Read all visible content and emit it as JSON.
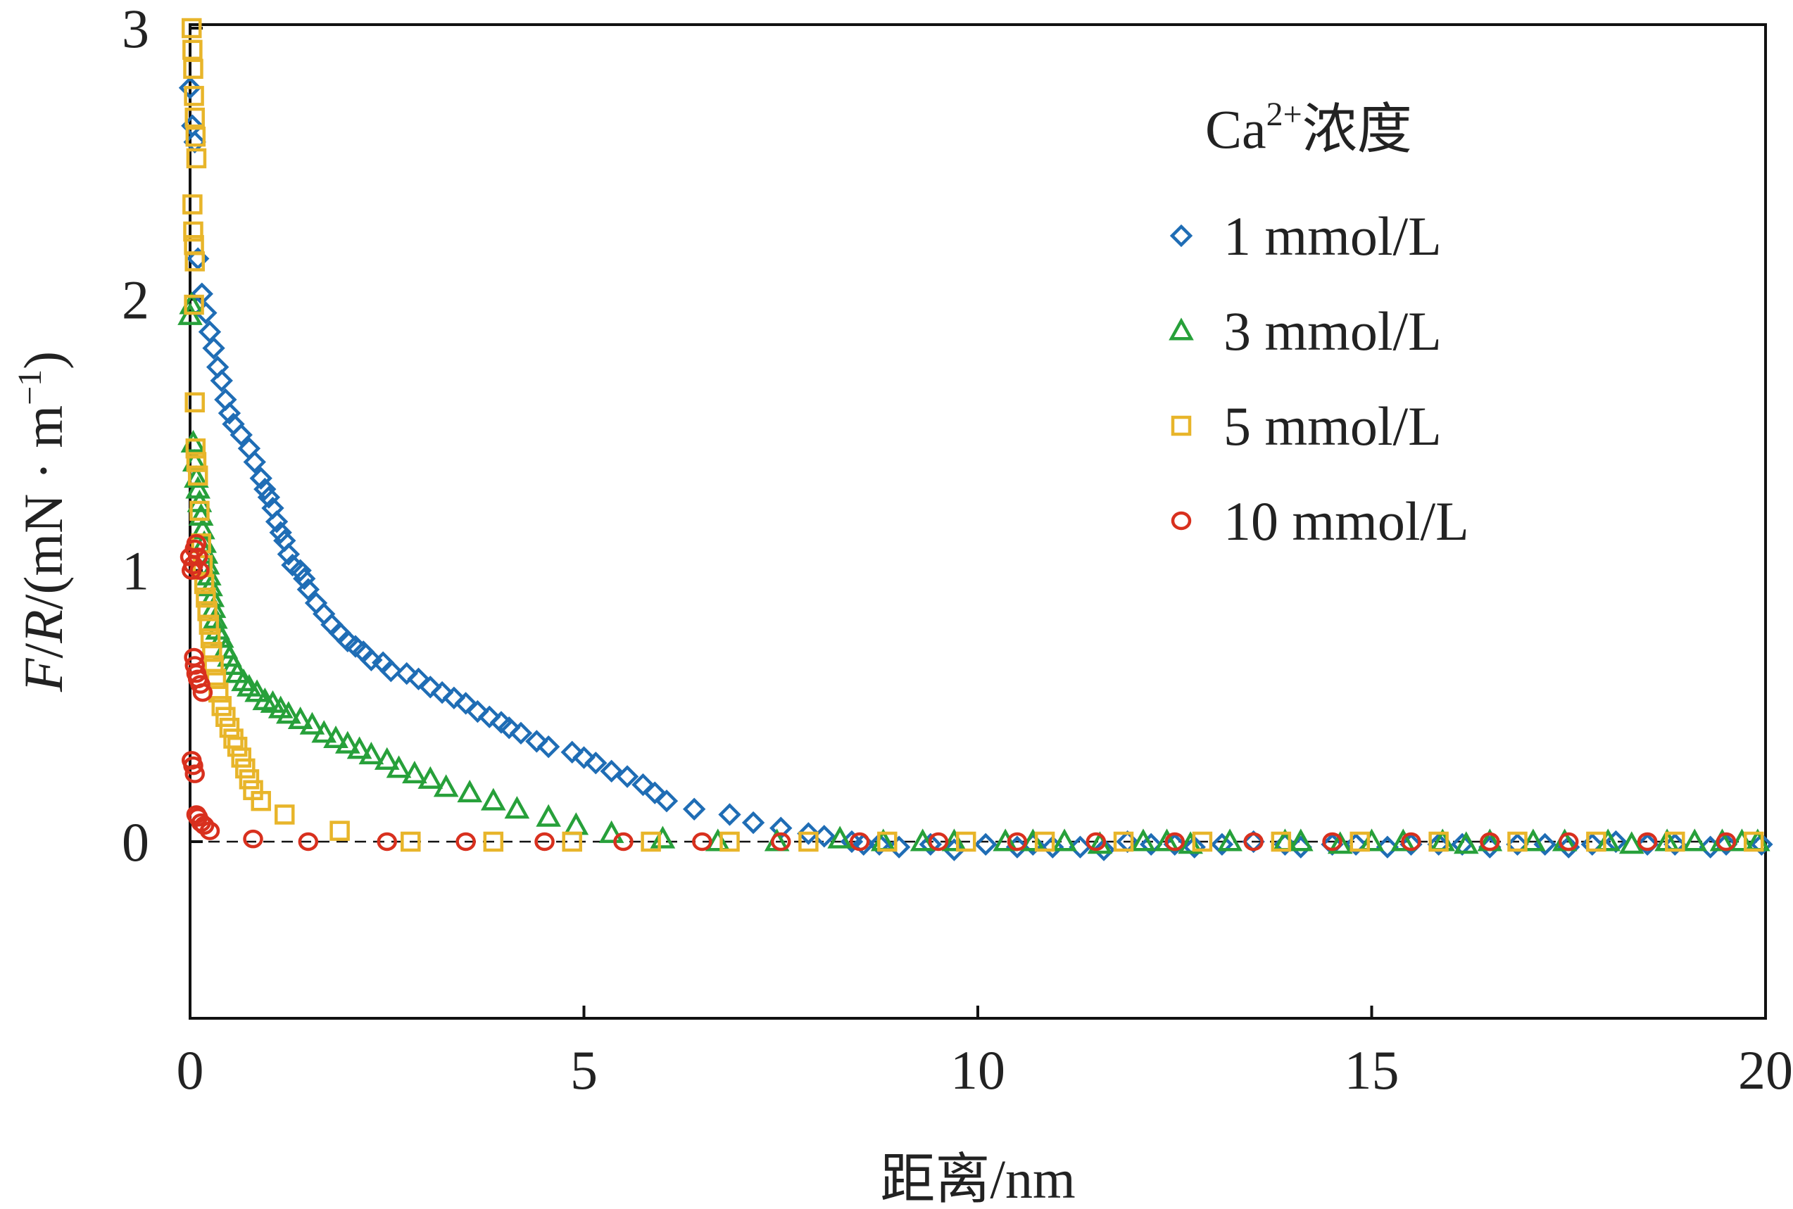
{
  "chart_data": {
    "type": "scatter",
    "title": "",
    "xlabel": "距离/nm",
    "ylabel": {
      "F": "F",
      "sep1": "/",
      "R": "R",
      "unit_pre": "/(mN · m",
      "unit_sup": "−1",
      "unit_post": ")"
    },
    "xlim": [
      0,
      20
    ],
    "ylim": [
      -0.65,
      3.0
    ],
    "xticks": [
      0,
      5,
      10,
      15,
      20
    ],
    "xtick_labels": [
      "0",
      "5",
      "10",
      "15",
      "20"
    ],
    "yticks": [
      0,
      1,
      2,
      3
    ],
    "ytick_labels": [
      "0",
      "1",
      "2",
      "3"
    ],
    "grid": false,
    "zero_line": true,
    "legend": {
      "position": "top-right",
      "title_main": "Ca",
      "title_sup": "2+",
      "title_rest": "浓度"
    },
    "series": [
      {
        "name": "1 mmol/L",
        "marker": "diamond",
        "color": "#1f6db5",
        "x": [
          0.0,
          0.03,
          0.06,
          0.1,
          0.15,
          0.2,
          0.25,
          0.3,
          0.35,
          0.4,
          0.45,
          0.5,
          0.55,
          0.65,
          0.75,
          0.82,
          0.9,
          0.95,
          1.0,
          1.05,
          1.1,
          1.15,
          1.2,
          1.25,
          1.3,
          1.4,
          1.45,
          1.5,
          1.6,
          1.7,
          1.8,
          1.9,
          2.0,
          2.1,
          2.2,
          2.3,
          2.45,
          2.55,
          2.75,
          2.9,
          3.05,
          3.2,
          3.35,
          3.5,
          3.65,
          3.8,
          3.95,
          4.05,
          4.2,
          4.4,
          4.55,
          4.85,
          5.0,
          5.15,
          5.35,
          5.55,
          5.75,
          5.9,
          6.05,
          6.4,
          6.85,
          7.15,
          7.5,
          7.85,
          8.05,
          8.4,
          8.55,
          8.75,
          9.0,
          9.4,
          9.7,
          10.1,
          10.5,
          10.7,
          10.95,
          11.3,
          11.6,
          11.9,
          12.2,
          12.5,
          12.75,
          13.1,
          13.5,
          13.9,
          14.1,
          14.5,
          14.8,
          15.2,
          15.5,
          15.85,
          16.15,
          16.5,
          16.85,
          17.2,
          17.5,
          17.8,
          18.1,
          18.5,
          18.85,
          19.3,
          19.5,
          19.95
        ],
        "y": [
          2.78,
          2.64,
          2.58,
          2.15,
          2.02,
          1.95,
          1.88,
          1.82,
          1.75,
          1.7,
          1.63,
          1.58,
          1.54,
          1.5,
          1.45,
          1.4,
          1.34,
          1.3,
          1.27,
          1.23,
          1.18,
          1.14,
          1.11,
          1.06,
          1.02,
          1.0,
          0.97,
          0.93,
          0.88,
          0.84,
          0.8,
          0.77,
          0.74,
          0.72,
          0.7,
          0.67,
          0.66,
          0.63,
          0.62,
          0.6,
          0.57,
          0.55,
          0.53,
          0.51,
          0.48,
          0.46,
          0.44,
          0.42,
          0.4,
          0.37,
          0.35,
          0.33,
          0.31,
          0.29,
          0.26,
          0.24,
          0.21,
          0.18,
          0.15,
          0.12,
          0.1,
          0.07,
          0.05,
          0.03,
          0.02,
          0.0,
          -0.01,
          -0.01,
          -0.02,
          -0.01,
          -0.03,
          -0.01,
          -0.02,
          -0.01,
          -0.02,
          -0.02,
          -0.03,
          0.0,
          -0.01,
          -0.01,
          -0.02,
          -0.01,
          0.0,
          -0.01,
          -0.02,
          -0.01,
          -0.01,
          -0.02,
          -0.01,
          -0.01,
          -0.01,
          -0.02,
          -0.01,
          -0.01,
          -0.02,
          -0.01,
          0.0,
          -0.01,
          -0.01,
          -0.02,
          -0.01,
          -0.01
        ]
      },
      {
        "name": "3 mmol/L",
        "marker": "triangle",
        "color": "#27a03a",
        "x": [
          0.0,
          0.02,
          0.04,
          0.06,
          0.08,
          0.1,
          0.12,
          0.14,
          0.16,
          0.18,
          0.2,
          0.22,
          0.24,
          0.26,
          0.28,
          0.3,
          0.32,
          0.35,
          0.4,
          0.45,
          0.5,
          0.55,
          0.6,
          0.68,
          0.75,
          0.85,
          0.95,
          1.05,
          1.15,
          1.25,
          1.4,
          1.55,
          1.7,
          1.85,
          2.0,
          2.15,
          2.3,
          2.5,
          2.65,
          2.85,
          3.05,
          3.25,
          3.55,
          3.85,
          4.15,
          4.55,
          4.9,
          5.35,
          6.0,
          6.7,
          7.45,
          8.25,
          8.8,
          9.3,
          9.7,
          10.35,
          10.7,
          11.1,
          11.55,
          12.1,
          12.4,
          12.7,
          13.2,
          13.9,
          14.1,
          14.6,
          15.0,
          15.4,
          15.9,
          16.2,
          16.5,
          17.05,
          17.45,
          18.0,
          18.3,
          18.75,
          19.1,
          19.45,
          19.7,
          19.9
        ],
        "y": [
          1.94,
          1.98,
          1.47,
          1.4,
          1.34,
          1.3,
          1.25,
          1.2,
          1.15,
          1.1,
          1.06,
          1.02,
          0.98,
          0.94,
          0.9,
          0.86,
          0.82,
          0.78,
          0.75,
          0.71,
          0.68,
          0.65,
          0.62,
          0.59,
          0.57,
          0.55,
          0.52,
          0.51,
          0.49,
          0.47,
          0.45,
          0.43,
          0.4,
          0.38,
          0.36,
          0.34,
          0.32,
          0.3,
          0.27,
          0.25,
          0.23,
          0.2,
          0.18,
          0.15,
          0.12,
          0.09,
          0.06,
          0.03,
          0.01,
          0.0,
          0.0,
          0.01,
          0.0,
          0.0,
          0.0,
          0.0,
          0.0,
          0.0,
          -0.01,
          0.0,
          0.0,
          -0.01,
          0.0,
          0.0,
          0.0,
          -0.01,
          0.0,
          0.0,
          0.0,
          -0.01,
          0.0,
          0.0,
          0.0,
          0.0,
          -0.01,
          0.0,
          0.0,
          0.0,
          0.0,
          0.0
        ]
      },
      {
        "name": "5 mmol/L",
        "marker": "square",
        "color": "#e8b52a",
        "x": [
          0.02,
          0.03,
          0.04,
          0.05,
          0.06,
          0.07,
          0.08,
          0.03,
          0.04,
          0.05,
          0.06,
          0.05,
          0.06,
          0.07,
          0.08,
          0.1,
          0.12,
          0.14,
          0.16,
          0.18,
          0.2,
          0.22,
          0.24,
          0.26,
          0.28,
          0.3,
          0.33,
          0.36,
          0.4,
          0.45,
          0.5,
          0.55,
          0.6,
          0.65,
          0.7,
          0.75,
          0.8,
          0.9,
          1.2,
          1.9,
          2.8,
          3.85,
          4.85,
          5.85,
          6.85,
          7.85,
          8.85,
          9.85,
          10.85,
          11.85,
          12.85,
          13.85,
          14.85,
          15.85,
          16.85,
          17.85,
          18.85,
          19.85
        ],
        "y": [
          3.0,
          2.92,
          2.85,
          2.75,
          2.67,
          2.6,
          2.52,
          2.35,
          2.25,
          2.2,
          2.14,
          1.98,
          1.62,
          1.45,
          1.4,
          1.35,
          1.22,
          1.1,
          1.02,
          0.95,
          0.9,
          0.85,
          0.8,
          0.75,
          0.7,
          0.65,
          0.6,
          0.55,
          0.5,
          0.46,
          0.42,
          0.38,
          0.35,
          0.31,
          0.27,
          0.23,
          0.19,
          0.15,
          0.1,
          0.04,
          0.0,
          0.0,
          0.0,
          0.0,
          0.0,
          0.0,
          0.0,
          0.0,
          0.0,
          0.0,
          0.0,
          0.0,
          0.0,
          0.0,
          0.0,
          0.0,
          0.0,
          0.0
        ]
      },
      {
        "name": "10 mmol/L",
        "marker": "circle",
        "color": "#d8301e",
        "x": [
          0.0,
          0.02,
          0.04,
          0.06,
          0.08,
          0.1,
          0.12,
          0.05,
          0.06,
          0.08,
          0.1,
          0.13,
          0.16,
          0.02,
          0.04,
          0.06,
          0.08,
          0.1,
          0.14,
          0.18,
          0.25,
          0.8,
          1.5,
          2.5,
          3.5,
          4.5,
          5.5,
          6.5,
          7.5,
          8.5,
          9.5,
          10.5,
          11.5,
          12.5,
          13.5,
          14.5,
          15.5,
          16.5,
          17.5,
          18.5,
          19.5
        ],
        "y": [
          1.05,
          1.0,
          1.02,
          1.08,
          1.1,
          1.05,
          1.0,
          0.68,
          0.65,
          0.62,
          0.6,
          0.58,
          0.55,
          0.3,
          0.28,
          0.25,
          0.1,
          0.09,
          0.07,
          0.06,
          0.04,
          0.01,
          0.0,
          0.0,
          0.0,
          0.0,
          0.0,
          0.0,
          0.0,
          0.0,
          0.0,
          0.0,
          0.0,
          0.0,
          0.0,
          0.0,
          0.0,
          0.0,
          0.0,
          0.0,
          0.0
        ]
      }
    ]
  }
}
